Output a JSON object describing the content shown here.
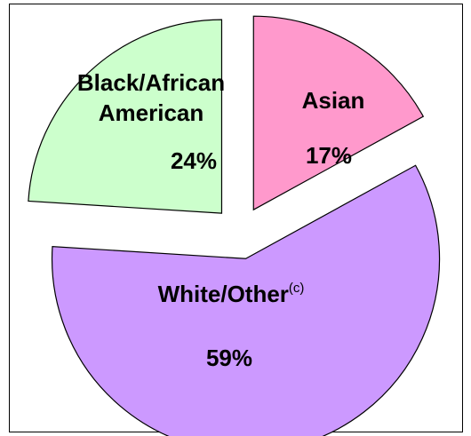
{
  "chart_data": {
    "type": "pie",
    "title": "",
    "start_angle_deg": 0,
    "exploded": true,
    "slices": [
      {
        "label_lines": [
          "Asian"
        ],
        "superscript": "",
        "pct_label": "17%",
        "value": 17,
        "color": "#ff99cc"
      },
      {
        "label_lines": [
          "White/Other"
        ],
        "superscript": "(c)",
        "pct_label": "59%",
        "value": 59,
        "color": "#cc99ff"
      },
      {
        "label_lines": [
          "Black/African",
          "American"
        ],
        "superscript": "",
        "pct_label": "24%",
        "value": 24,
        "color": "#ccffcc"
      }
    ]
  }
}
